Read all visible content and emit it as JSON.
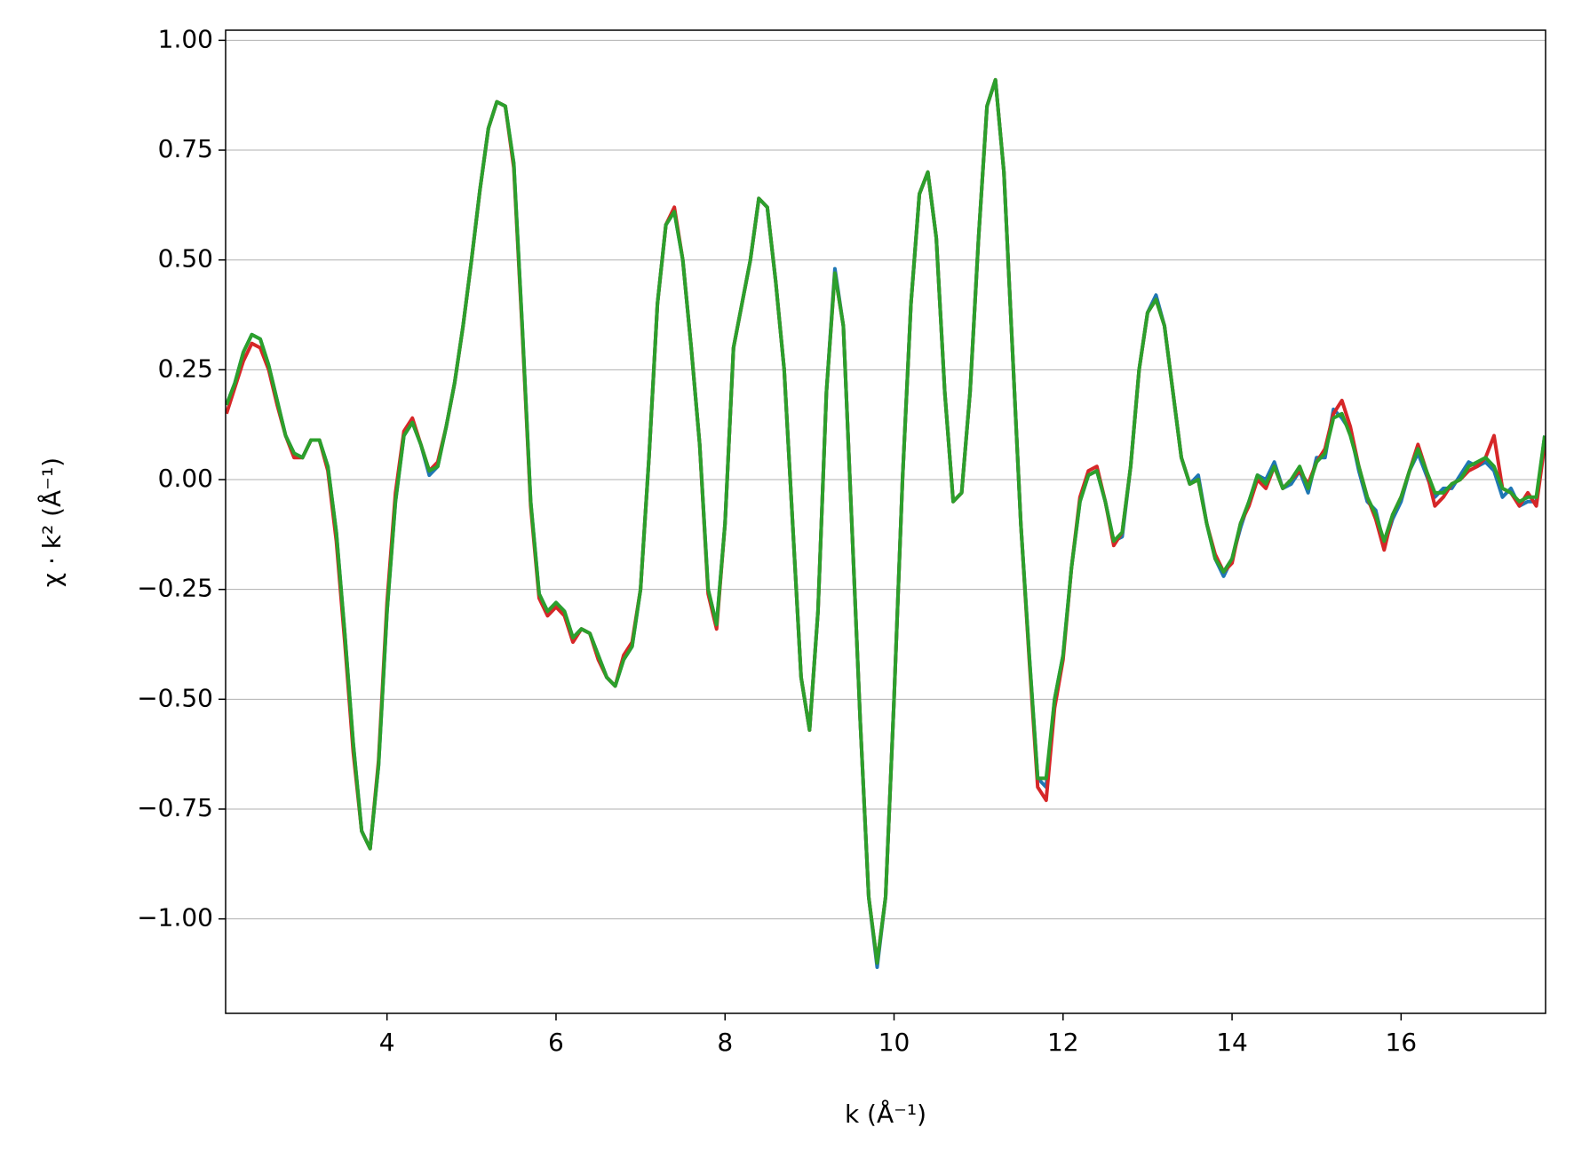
{
  "chart_data": {
    "type": "line",
    "xlabel": "k (Å⁻¹)",
    "ylabel": "χ · k² (Å⁻¹)",
    "x": [
      2.1,
      2.2,
      2.3,
      2.4,
      2.5,
      2.6,
      2.7,
      2.8,
      2.9,
      3.0,
      3.1,
      3.2,
      3.3,
      3.4,
      3.5,
      3.6,
      3.7,
      3.8,
      3.9,
      4.0,
      4.1,
      4.2,
      4.3,
      4.4,
      4.5,
      4.6,
      4.7,
      4.8,
      4.9,
      5.0,
      5.1,
      5.2,
      5.3,
      5.4,
      5.5,
      5.6,
      5.7,
      5.8,
      5.9,
      6.0,
      6.1,
      6.2,
      6.3,
      6.4,
      6.5,
      6.6,
      6.7,
      6.8,
      6.9,
      7.0,
      7.1,
      7.2,
      7.3,
      7.4,
      7.5,
      7.6,
      7.7,
      7.8,
      7.9,
      8.0,
      8.1,
      8.2,
      8.3,
      8.4,
      8.5,
      8.6,
      8.7,
      8.8,
      8.9,
      9.0,
      9.1,
      9.2,
      9.3,
      9.4,
      9.5,
      9.6,
      9.7,
      9.8,
      9.9,
      10.0,
      10.1,
      10.2,
      10.3,
      10.4,
      10.5,
      10.6,
      10.7,
      10.8,
      10.9,
      11.0,
      11.1,
      11.2,
      11.3,
      11.4,
      11.5,
      11.6,
      11.7,
      11.8,
      11.9,
      12.0,
      12.1,
      12.2,
      12.3,
      12.4,
      12.5,
      12.6,
      12.7,
      12.8,
      12.9,
      13.0,
      13.1,
      13.2,
      13.3,
      13.4,
      13.5,
      13.6,
      13.7,
      13.8,
      13.9,
      14.0,
      14.1,
      14.2,
      14.3,
      14.4,
      14.5,
      14.6,
      14.7,
      14.8,
      14.9,
      15.0,
      15.1,
      15.2,
      15.3,
      15.4,
      15.5,
      15.6,
      15.7,
      15.8,
      15.9,
      16.0,
      16.1,
      16.2,
      16.3,
      16.4,
      16.5,
      16.6,
      16.7,
      16.8,
      16.9,
      17.0,
      17.1,
      17.2,
      17.3,
      17.4,
      17.5,
      17.6,
      17.7
    ],
    "series": [
      {
        "color": "#1f77b4",
        "values": [
          0.17,
          0.22,
          0.29,
          0.33,
          0.32,
          0.26,
          0.18,
          0.1,
          0.06,
          0.05,
          0.09,
          0.09,
          0.03,
          -0.12,
          -0.35,
          -0.6,
          -0.8,
          -0.84,
          -0.65,
          -0.3,
          -0.05,
          0.1,
          0.13,
          0.08,
          0.01,
          0.03,
          0.12,
          0.22,
          0.35,
          0.5,
          0.66,
          0.8,
          0.86,
          0.85,
          0.72,
          0.35,
          -0.05,
          -0.26,
          -0.3,
          -0.28,
          -0.3,
          -0.36,
          -0.34,
          -0.35,
          -0.4,
          -0.45,
          -0.47,
          -0.41,
          -0.38,
          -0.25,
          0.05,
          0.4,
          0.58,
          0.61,
          0.5,
          0.3,
          0.08,
          -0.25,
          -0.33,
          -0.1,
          0.3,
          0.4,
          0.5,
          0.64,
          0.62,
          0.45,
          0.25,
          -0.1,
          -0.45,
          -0.57,
          -0.3,
          0.2,
          0.48,
          0.35,
          -0.1,
          -0.55,
          -0.95,
          -1.11,
          -0.95,
          -0.5,
          0.0,
          0.4,
          0.65,
          0.7,
          0.55,
          0.2,
          -0.05,
          -0.03,
          0.2,
          0.55,
          0.85,
          0.91,
          0.7,
          0.3,
          -0.1,
          -0.4,
          -0.68,
          -0.7,
          -0.5,
          -0.4,
          -0.2,
          -0.05,
          0.01,
          0.02,
          -0.05,
          -0.14,
          -0.13,
          0.03,
          0.25,
          0.38,
          0.42,
          0.35,
          0.2,
          0.05,
          -0.01,
          0.01,
          -0.1,
          -0.18,
          -0.22,
          -0.18,
          -0.11,
          -0.05,
          0.01,
          0.0,
          0.04,
          -0.02,
          -0.01,
          0.02,
          -0.03,
          0.05,
          0.05,
          0.16,
          0.14,
          0.11,
          0.02,
          -0.05,
          -0.07,
          -0.15,
          -0.09,
          -0.05,
          0.02,
          0.06,
          0.01,
          -0.04,
          -0.02,
          -0.02,
          0.01,
          0.04,
          0.03,
          0.04,
          0.02,
          -0.04,
          -0.02,
          -0.06,
          -0.05,
          -0.05,
          0.1
        ]
      },
      {
        "color": "#d62728",
        "values": [
          0.15,
          0.21,
          0.27,
          0.31,
          0.3,
          0.25,
          0.17,
          0.1,
          0.05,
          0.05,
          0.09,
          0.09,
          0.02,
          -0.14,
          -0.37,
          -0.62,
          -0.8,
          -0.84,
          -0.64,
          -0.28,
          -0.03,
          0.11,
          0.14,
          0.08,
          0.02,
          0.04,
          0.12,
          0.22,
          0.35,
          0.5,
          0.66,
          0.8,
          0.86,
          0.85,
          0.71,
          0.34,
          -0.06,
          -0.27,
          -0.31,
          -0.29,
          -0.31,
          -0.37,
          -0.34,
          -0.35,
          -0.41,
          -0.45,
          -0.47,
          -0.4,
          -0.37,
          -0.25,
          0.05,
          0.4,
          0.58,
          0.62,
          0.5,
          0.3,
          0.08,
          -0.26,
          -0.34,
          -0.1,
          0.3,
          0.4,
          0.5,
          0.64,
          0.62,
          0.45,
          0.25,
          -0.1,
          -0.45,
          -0.57,
          -0.3,
          0.2,
          0.47,
          0.35,
          -0.1,
          -0.55,
          -0.95,
          -1.1,
          -0.95,
          -0.5,
          0.0,
          0.4,
          0.65,
          0.7,
          0.55,
          0.2,
          -0.05,
          -0.03,
          0.2,
          0.55,
          0.85,
          0.91,
          0.7,
          0.3,
          -0.1,
          -0.41,
          -0.7,
          -0.73,
          -0.52,
          -0.41,
          -0.2,
          -0.04,
          0.02,
          0.03,
          -0.05,
          -0.15,
          -0.12,
          0.03,
          0.25,
          0.38,
          0.41,
          0.35,
          0.2,
          0.05,
          -0.01,
          0.0,
          -0.1,
          -0.17,
          -0.21,
          -0.19,
          -0.1,
          -0.06,
          0.0,
          -0.02,
          0.03,
          -0.02,
          0.0,
          0.02,
          -0.01,
          0.04,
          0.07,
          0.15,
          0.18,
          0.12,
          0.03,
          -0.04,
          -0.09,
          -0.16,
          -0.08,
          -0.04,
          0.02,
          0.08,
          0.02,
          -0.06,
          -0.04,
          -0.01,
          0.0,
          0.02,
          0.03,
          0.05,
          0.1,
          -0.02,
          -0.03,
          -0.06,
          -0.03,
          -0.06,
          0.08
        ]
      },
      {
        "color": "#2ca02c",
        "values": [
          0.17,
          0.22,
          0.29,
          0.33,
          0.32,
          0.26,
          0.18,
          0.1,
          0.06,
          0.05,
          0.09,
          0.09,
          0.03,
          -0.12,
          -0.35,
          -0.6,
          -0.8,
          -0.84,
          -0.65,
          -0.3,
          -0.05,
          0.1,
          0.13,
          0.08,
          0.02,
          0.03,
          0.12,
          0.22,
          0.35,
          0.5,
          0.66,
          0.8,
          0.86,
          0.85,
          0.72,
          0.35,
          -0.05,
          -0.26,
          -0.3,
          -0.28,
          -0.3,
          -0.36,
          -0.34,
          -0.35,
          -0.4,
          -0.45,
          -0.47,
          -0.41,
          -0.38,
          -0.25,
          0.05,
          0.4,
          0.58,
          0.61,
          0.5,
          0.3,
          0.08,
          -0.25,
          -0.33,
          -0.1,
          0.3,
          0.4,
          0.5,
          0.64,
          0.62,
          0.45,
          0.25,
          -0.1,
          -0.45,
          -0.57,
          -0.3,
          0.2,
          0.47,
          0.35,
          -0.1,
          -0.55,
          -0.95,
          -1.1,
          -0.95,
          -0.5,
          0.0,
          0.4,
          0.65,
          0.7,
          0.55,
          0.2,
          -0.05,
          -0.03,
          0.2,
          0.55,
          0.85,
          0.91,
          0.7,
          0.3,
          -0.1,
          -0.4,
          -0.68,
          -0.68,
          -0.5,
          -0.4,
          -0.2,
          -0.05,
          0.01,
          0.02,
          -0.05,
          -0.14,
          -0.12,
          0.03,
          0.25,
          0.38,
          0.41,
          0.35,
          0.2,
          0.05,
          -0.01,
          0.0,
          -0.1,
          -0.18,
          -0.21,
          -0.18,
          -0.1,
          -0.05,
          0.01,
          -0.01,
          0.03,
          -0.02,
          0.0,
          0.03,
          -0.02,
          0.04,
          0.06,
          0.14,
          0.15,
          0.1,
          0.03,
          -0.04,
          -0.08,
          -0.14,
          -0.08,
          -0.04,
          0.02,
          0.07,
          0.02,
          -0.03,
          -0.03,
          -0.01,
          0.0,
          0.03,
          0.04,
          0.05,
          0.03,
          -0.02,
          -0.03,
          -0.05,
          -0.04,
          -0.04,
          0.1
        ]
      }
    ],
    "xlim": [
      2.09,
      17.71
    ],
    "ylim": [
      -1.215,
      1.023
    ],
    "xticks": [
      4,
      6,
      8,
      10,
      12,
      14,
      16
    ],
    "yticks": [
      {
        "value": -1,
        "label": "−1.00"
      },
      {
        "value": -0.75,
        "label": "−0.75"
      },
      {
        "value": -0.5,
        "label": "−0.50"
      },
      {
        "value": -0.25,
        "label": "−0.25"
      },
      {
        "value": 0,
        "label": "0.00"
      },
      {
        "value": 0.25,
        "label": "0.25"
      },
      {
        "value": 0.5,
        "label": "0.50"
      },
      {
        "value": 0.75,
        "label": "0.75"
      },
      {
        "value": 1,
        "label": "1.00"
      }
    ],
    "grid": "y"
  }
}
